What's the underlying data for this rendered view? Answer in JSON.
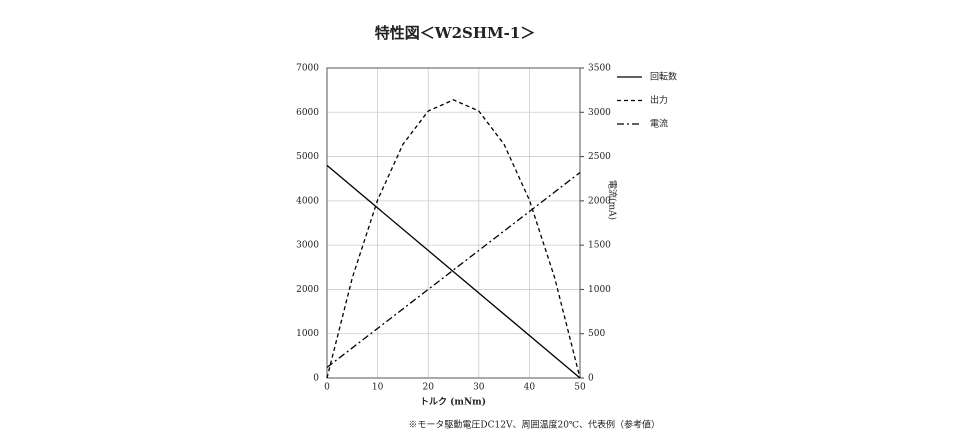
{
  "chart_data": {
    "type": "line",
    "title": "特性図＜W2SHM-1＞",
    "x_label": "トルク (mNm)",
    "y2_label": "電流(mA)",
    "note": "※モータ駆動電圧DC12V、周囲温度20℃、代表例（参考値）",
    "xlim": [
      0,
      50
    ],
    "xticks": [
      0,
      10,
      20,
      30,
      40,
      50
    ],
    "ylim": [
      0,
      7000
    ],
    "yticks": [
      0,
      1000,
      2000,
      3000,
      4000,
      5000,
      6000,
      7000
    ],
    "y2lim": [
      0,
      3500
    ],
    "y2ticks": [
      0,
      500,
      1000,
      1500,
      2000,
      2500,
      3000,
      3500
    ],
    "grid": true,
    "legend": "right",
    "series": [
      {
        "name": "回転数",
        "color": "#000000",
        "dash": "solid",
        "x": [
          0,
          50
        ],
        "values": [
          4800,
          0
        ]
      },
      {
        "name": "出力",
        "color": "#000000",
        "dash": "dashed",
        "x": [
          0,
          5,
          10,
          15,
          20,
          25,
          30,
          35,
          40,
          45,
          50
        ],
        "values": [
          0,
          2261,
          4019,
          5275,
          6029,
          6280,
          6029,
          5275,
          4019,
          2261,
          0
        ]
      },
      {
        "name": "電流",
        "color": "#000000",
        "dash": "dashdot",
        "axis": "y2",
        "x": [
          0,
          50
        ],
        "values": [
          120,
          2320
        ]
      }
    ]
  }
}
